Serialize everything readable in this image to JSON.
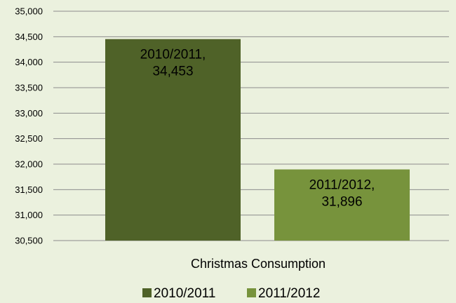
{
  "chart_data": {
    "type": "bar",
    "categories": [
      "Christmas Consumption"
    ],
    "series": [
      {
        "name": "2010/2011",
        "values": [
          34453
        ],
        "color": "#4f6228",
        "data_label": [
          "2010/2011,",
          "34,453"
        ]
      },
      {
        "name": "2011/2012",
        "values": [
          31896
        ],
        "color": "#77933c",
        "data_label": [
          "2011/2012,",
          "31,896"
        ]
      }
    ],
    "ylim": [
      30500,
      35000
    ],
    "yticks": [
      30500,
      31000,
      31500,
      32000,
      32500,
      33000,
      33500,
      34000,
      34500,
      35000
    ],
    "ytick_labels": [
      "30,500",
      "31,000",
      "31,500",
      "32,000",
      "32,500",
      "33,000",
      "33,500",
      "34,000",
      "34,500",
      "35,000"
    ],
    "grid": true,
    "legend_position": "bottom",
    "title": "",
    "xlabel": "",
    "ylabel": ""
  }
}
